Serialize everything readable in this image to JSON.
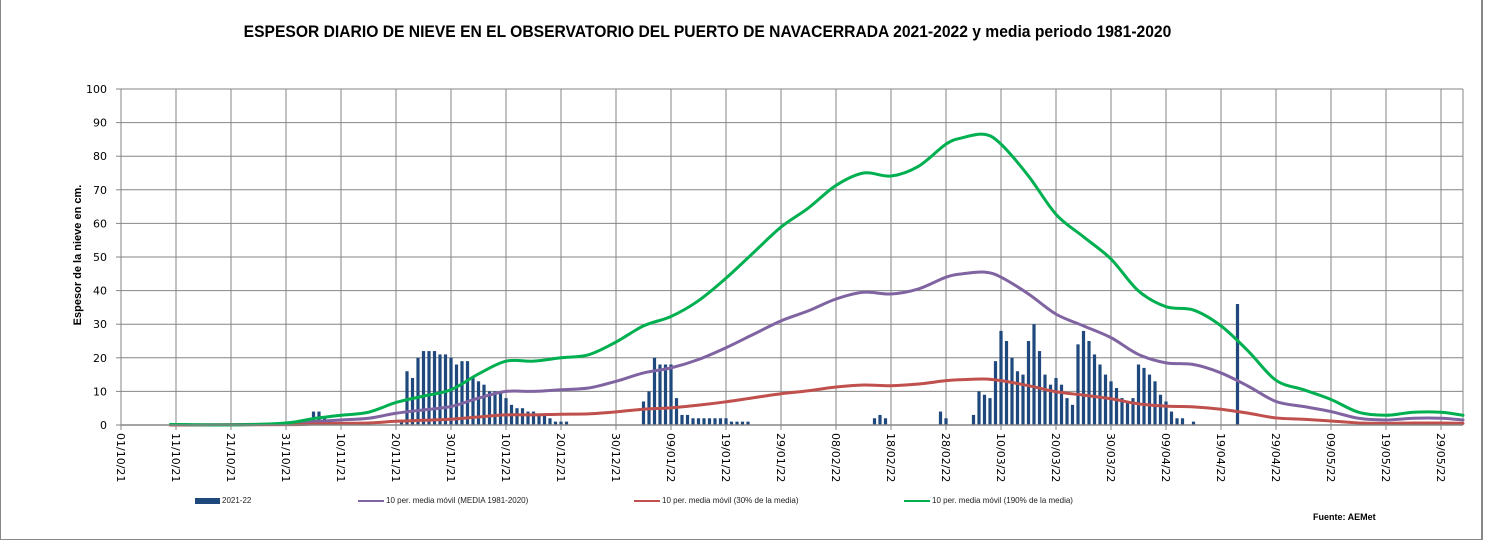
{
  "chart_data": {
    "type": "bar+line",
    "title": "ESPESOR DIARIO DE NIEVE EN EL OBSERVATORIO  DEL PUERTO DE NAVACERRADA  2021-2022 y media periodo 1981-2020",
    "xlabel": "",
    "ylabel": "Espesor de la nieve en cm.",
    "ylim": [
      0,
      100
    ],
    "yticks": [
      "0",
      "10",
      "20",
      "30",
      "40",
      "50",
      "60",
      "70",
      "80",
      "90",
      "100"
    ],
    "x_start_date": "01/10/21",
    "x_range_days": [
      0,
      244
    ],
    "xticks": [
      "01/10/21",
      "11/10/21",
      "21/10/21",
      "31/10/21",
      "10/11/21",
      "20/11/21",
      "30/11/21",
      "10/12/21",
      "20/12/21",
      "30/12/21",
      "09/01/22",
      "19/01/22",
      "29/01/22",
      "08/02/22",
      "18/02/22",
      "28/02/22",
      "10/03/22",
      "20/03/22",
      "30/03/22",
      "09/04/22",
      "19/04/22",
      "29/04/22",
      "09/05/22",
      "19/05/22",
      "29/05/22"
    ],
    "grid": true,
    "legend_placement": "bottom",
    "series": [
      {
        "name": "2021-22",
        "kind": "bar",
        "color": "#1f497d",
        "points_day_value": [
          [
            35,
            4
          ],
          [
            36,
            4
          ],
          [
            37,
            2
          ],
          [
            38,
            1
          ],
          [
            51,
            1
          ],
          [
            52,
            16
          ],
          [
            53,
            14
          ],
          [
            54,
            20
          ],
          [
            55,
            22
          ],
          [
            56,
            22
          ],
          [
            57,
            22
          ],
          [
            58,
            21
          ],
          [
            59,
            21
          ],
          [
            60,
            20
          ],
          [
            61,
            18
          ],
          [
            62,
            19
          ],
          [
            63,
            19
          ],
          [
            64,
            14
          ],
          [
            65,
            13
          ],
          [
            66,
            12
          ],
          [
            67,
            10
          ],
          [
            68,
            10
          ],
          [
            69,
            10
          ],
          [
            70,
            8
          ],
          [
            71,
            6
          ],
          [
            72,
            5
          ],
          [
            73,
            5
          ],
          [
            74,
            4
          ],
          [
            75,
            4
          ],
          [
            76,
            3
          ],
          [
            77,
            3
          ],
          [
            78,
            2
          ],
          [
            79,
            1
          ],
          [
            80,
            1
          ],
          [
            81,
            1
          ],
          [
            95,
            7
          ],
          [
            96,
            10
          ],
          [
            97,
            20
          ],
          [
            98,
            18
          ],
          [
            99,
            18
          ],
          [
            100,
            18
          ],
          [
            101,
            8
          ],
          [
            102,
            3
          ],
          [
            103,
            3
          ],
          [
            104,
            2
          ],
          [
            105,
            2
          ],
          [
            106,
            2
          ],
          [
            107,
            2
          ],
          [
            108,
            2
          ],
          [
            109,
            2
          ],
          [
            110,
            2
          ],
          [
            111,
            1
          ],
          [
            112,
            1
          ],
          [
            113,
            1
          ],
          [
            114,
            1
          ],
          [
            137,
            2
          ],
          [
            138,
            3
          ],
          [
            139,
            2
          ],
          [
            149,
            4
          ],
          [
            150,
            2
          ],
          [
            155,
            3
          ],
          [
            156,
            10
          ],
          [
            157,
            9
          ],
          [
            158,
            8
          ],
          [
            159,
            19
          ],
          [
            160,
            28
          ],
          [
            161,
            25
          ],
          [
            162,
            20
          ],
          [
            163,
            16
          ],
          [
            164,
            15
          ],
          [
            165,
            25
          ],
          [
            166,
            30
          ],
          [
            167,
            22
          ],
          [
            168,
            15
          ],
          [
            169,
            12
          ],
          [
            170,
            14
          ],
          [
            171,
            12
          ],
          [
            172,
            8
          ],
          [
            173,
            6
          ],
          [
            174,
            24
          ],
          [
            175,
            28
          ],
          [
            176,
            25
          ],
          [
            177,
            21
          ],
          [
            178,
            18
          ],
          [
            179,
            15
          ],
          [
            180,
            13
          ],
          [
            181,
            11
          ],
          [
            182,
            8
          ],
          [
            183,
            7
          ],
          [
            184,
            8
          ],
          [
            185,
            18
          ],
          [
            186,
            17
          ],
          [
            187,
            15
          ],
          [
            188,
            13
          ],
          [
            189,
            9
          ],
          [
            190,
            7
          ],
          [
            191,
            4
          ],
          [
            192,
            2
          ],
          [
            193,
            2
          ],
          [
            195,
            1
          ],
          [
            203,
            36
          ]
        ]
      },
      {
        "name": "10 per. media móvil (MEDIA 1981-2020)",
        "kind": "line",
        "color": "#8064a2",
        "points_day_value": [
          [
            9,
            0
          ],
          [
            30,
            0.3
          ],
          [
            35,
            1
          ],
          [
            40,
            1.5
          ],
          [
            45,
            2
          ],
          [
            50,
            3.5
          ],
          [
            55,
            4.5
          ],
          [
            60,
            5.5
          ],
          [
            65,
            8
          ],
          [
            70,
            10
          ],
          [
            75,
            10
          ],
          [
            80,
            10.5
          ],
          [
            85,
            11
          ],
          [
            90,
            13
          ],
          [
            95,
            15.5
          ],
          [
            100,
            17
          ],
          [
            105,
            19.5
          ],
          [
            110,
            23
          ],
          [
            115,
            27
          ],
          [
            120,
            31
          ],
          [
            125,
            34
          ],
          [
            130,
            37.5
          ],
          [
            135,
            39.5
          ],
          [
            140,
            39
          ],
          [
            145,
            40.5
          ],
          [
            150,
            44
          ],
          [
            153,
            45
          ],
          [
            157,
            45.5
          ],
          [
            160,
            44
          ],
          [
            165,
            39
          ],
          [
            170,
            33
          ],
          [
            175,
            29.5
          ],
          [
            180,
            26
          ],
          [
            185,
            21
          ],
          [
            190,
            18.5
          ],
          [
            195,
            18
          ],
          [
            200,
            15.5
          ],
          [
            205,
            11.5
          ],
          [
            210,
            7
          ],
          [
            215,
            5.5
          ],
          [
            220,
            4
          ],
          [
            225,
            2
          ],
          [
            230,
            1.5
          ],
          [
            235,
            2
          ],
          [
            240,
            2
          ],
          [
            244,
            1.5
          ]
        ]
      },
      {
        "name": "10 per. media móvil (30% de la media)",
        "kind": "line",
        "color": "#c0504d",
        "points_day_value": [
          [
            9,
            0
          ],
          [
            30,
            0.1
          ],
          [
            35,
            0.3
          ],
          [
            40,
            0.5
          ],
          [
            45,
            0.6
          ],
          [
            50,
            1.1
          ],
          [
            55,
            1.4
          ],
          [
            60,
            1.7
          ],
          [
            65,
            2.4
          ],
          [
            70,
            3
          ],
          [
            75,
            3
          ],
          [
            80,
            3.2
          ],
          [
            85,
            3.3
          ],
          [
            90,
            3.9
          ],
          [
            95,
            4.7
          ],
          [
            100,
            5.1
          ],
          [
            105,
            5.9
          ],
          [
            110,
            6.9
          ],
          [
            115,
            8.1
          ],
          [
            120,
            9.3
          ],
          [
            125,
            10.2
          ],
          [
            130,
            11.3
          ],
          [
            135,
            11.9
          ],
          [
            140,
            11.7
          ],
          [
            145,
            12.2
          ],
          [
            150,
            13.2
          ],
          [
            153,
            13.5
          ],
          [
            157,
            13.7
          ],
          [
            160,
            13.2
          ],
          [
            165,
            11.7
          ],
          [
            170,
            9.9
          ],
          [
            175,
            8.9
          ],
          [
            180,
            7.8
          ],
          [
            185,
            6.3
          ],
          [
            190,
            5.6
          ],
          [
            195,
            5.4
          ],
          [
            200,
            4.7
          ],
          [
            205,
            3.5
          ],
          [
            210,
            2.1
          ],
          [
            215,
            1.7
          ],
          [
            220,
            1.2
          ],
          [
            225,
            0.6
          ],
          [
            230,
            0.5
          ],
          [
            235,
            0.6
          ],
          [
            240,
            0.6
          ],
          [
            244,
            0.5
          ]
        ]
      },
      {
        "name": "10 per. media móvil (190% de la media)",
        "kind": "line",
        "color": "#00b050",
        "points_day_value": [
          [
            9,
            0.2
          ],
          [
            20,
            0
          ],
          [
            30,
            0.6
          ],
          [
            35,
            1.9
          ],
          [
            40,
            2.9
          ],
          [
            45,
            3.8
          ],
          [
            50,
            6.7
          ],
          [
            55,
            8.6
          ],
          [
            60,
            10.5
          ],
          [
            65,
            15.2
          ],
          [
            70,
            19
          ],
          [
            75,
            19
          ],
          [
            80,
            20
          ],
          [
            85,
            20.9
          ],
          [
            90,
            24.7
          ],
          [
            95,
            29.5
          ],
          [
            100,
            32.3
          ],
          [
            105,
            37
          ],
          [
            110,
            43.7
          ],
          [
            115,
            51.3
          ],
          [
            120,
            58.9
          ],
          [
            125,
            64.6
          ],
          [
            130,
            71.3
          ],
          [
            135,
            75
          ],
          [
            140,
            74.1
          ],
          [
            145,
            77
          ],
          [
            150,
            83.6
          ],
          [
            153,
            85.5
          ],
          [
            157,
            86.5
          ],
          [
            160,
            83.6
          ],
          [
            165,
            74.1
          ],
          [
            170,
            62.7
          ],
          [
            175,
            56
          ],
          [
            180,
            49.4
          ],
          [
            185,
            39.9
          ],
          [
            190,
            35.2
          ],
          [
            195,
            34.2
          ],
          [
            200,
            29.5
          ],
          [
            205,
            21.9
          ],
          [
            210,
            13.3
          ],
          [
            215,
            10.5
          ],
          [
            220,
            7.6
          ],
          [
            225,
            3.8
          ],
          [
            230,
            2.9
          ],
          [
            235,
            3.8
          ],
          [
            240,
            3.8
          ],
          [
            244,
            2.9
          ]
        ]
      }
    ]
  },
  "legend": {
    "items": [
      {
        "label": "2021-22",
        "color": "#1f497d"
      },
      {
        "label": "10 per. media móvil (MEDIA 1981-2020)",
        "color": "#8064a2"
      },
      {
        "label": "10 per. media móvil (30% de la media)",
        "color": "#c0504d"
      },
      {
        "label": "10 per. media móvil (190% de la media)",
        "color": "#00b050"
      }
    ]
  },
  "source": "Fuente: AEMet"
}
